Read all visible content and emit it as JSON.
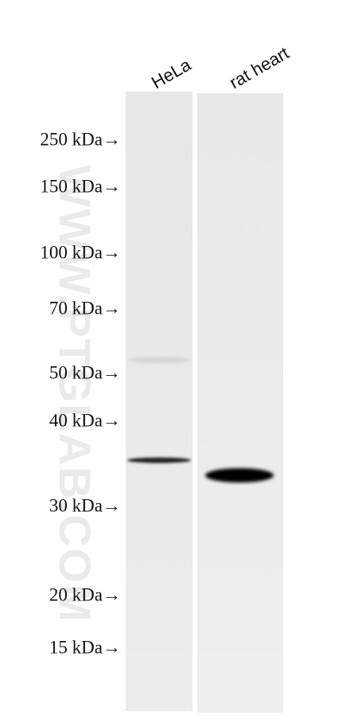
{
  "lanes": [
    "HeLa",
    "rat heart"
  ],
  "markers": [
    "250 kDa→",
    "150 kDa→",
    "100 kDa→",
    "70 kDa→",
    "50 kDa→",
    "40 kDa→",
    "30 kDa→",
    "20 kDa→",
    "15 kDa→"
  ],
  "watermark": "WWW.PTGLAB.COM"
}
